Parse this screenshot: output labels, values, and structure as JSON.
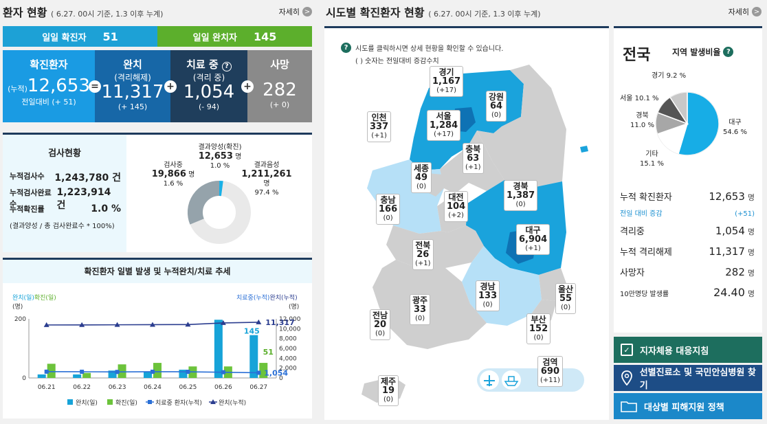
{
  "patient": {
    "title": "환자 현황",
    "subtitle": "( 6.27. 00시 기준, 1.3 이후 누계)",
    "more": "자세히",
    "daily_confirmed_label": "일일 확진자",
    "daily_confirmed": "51",
    "daily_released_label": "일일 완치자",
    "daily_released": "145",
    "confirmed": {
      "label": "확진환자",
      "prefix": "(누적)",
      "value": "12,653",
      "delta": "전일대비 (+ 51)"
    },
    "released": {
      "label": "완치",
      "sub": "(격리해제)",
      "value": "11,317",
      "delta": "(+ 145)"
    },
    "treating": {
      "label": "치료 중",
      "sub": "(격리 중)",
      "value": "1,054",
      "delta": "(- 94)"
    },
    "deaths": {
      "label": "사망",
      "value": "282",
      "delta": "(+ 0)"
    },
    "op_eq": "=",
    "op_plus": "+"
  },
  "tests": {
    "title": "검사현황",
    "rows": [
      {
        "label": "누적검사수",
        "value": "1,243,780 건"
      },
      {
        "label": "누적검사완료수",
        "value": "1,223,914 건"
      },
      {
        "label": "누적확진률",
        "value": "1.0 %"
      }
    ],
    "note": "(결과양성 / 총 검사완료수 * 100%)",
    "donut": {
      "positive_label": "결과양성(확진)",
      "positive_value": "12,653",
      "positive_unit": "명",
      "positive_pct": "1.0 %",
      "testing_label": "검사중",
      "testing_value": "19,866",
      "testing_unit": "명",
      "testing_pct": "1.6 %",
      "negative_label": "결과음성",
      "negative_value": "1,211,261",
      "negative_unit": "명",
      "negative_pct": "97.4 %"
    }
  },
  "trend": {
    "title": "확진환자 일별 발생 및 누적완치/치료 추세",
    "left_axis_title1": "완치(일)",
    "left_axis_title2": "확진(일)",
    "left_unit": "(명)",
    "right_axis_title1": "치료중(누적)",
    "right_axis_title2": "완치(누적)",
    "right_unit": "(명)",
    "left_ticks": [
      "200",
      "0"
    ],
    "right_ticks": [
      "12,000",
      "10,000",
      "8,000",
      "6,000",
      "4,000",
      "2,000",
      "0"
    ],
    "legend": [
      "완치(일)",
      "확진(일)",
      "치료중 환자(누적)",
      "완치(누적)"
    ],
    "ann_released_cum": "11,317",
    "ann_released_daily": "145",
    "ann_confirmed_daily": "51",
    "ann_treating": "1,054"
  },
  "chart_data": {
    "type": "bar",
    "categories": [
      "06.21",
      "06.22",
      "06.23",
      "06.24",
      "06.25",
      "06.26",
      "06.27"
    ],
    "series": [
      {
        "name": "완치(일)",
        "axis": "left",
        "values": [
          12,
          12,
          25,
          22,
          28,
          197,
          145
        ]
      },
      {
        "name": "확진(일)",
        "axis": "left",
        "values": [
          48,
          17,
          46,
          51,
          39,
          39,
          51
        ]
      },
      {
        "name": "치료중 환자(누적)",
        "axis": "right",
        "type": "line",
        "values": [
          1277,
          1262,
          1225,
          1265,
          1254,
          1166,
          1054
        ]
      },
      {
        "name": "완치(누적)",
        "axis": "right",
        "type": "line",
        "values": [
          10760,
          10772,
          10797,
          10819,
          10847,
          11172,
          11317
        ]
      }
    ],
    "ylim_left": [
      0,
      200
    ],
    "ylim_right": [
      0,
      12000
    ],
    "colors": {
      "released_daily": "#17a3d8",
      "confirmed_daily": "#6cc33b",
      "treating_cum": "#2a6fd6",
      "released_cum": "#2b3d8f"
    }
  },
  "regional": {
    "title": "시도별 확진환자 현황",
    "subtitle": "( 6.27. 00시 기준, 1.3 이후 누계)",
    "more": "자세히",
    "hint1": "시도를 클릭하시면 상세 현황을 확인할 수 있습니다.",
    "hint2": "( ) 숫자는 전일대비 증감수치",
    "regions": [
      {
        "name": "경기",
        "value": "1,167",
        "delta": "(+17)"
      },
      {
        "name": "강원",
        "value": "64",
        "delta": "(0)"
      },
      {
        "name": "인천",
        "value": "337",
        "delta": "(+1)"
      },
      {
        "name": "서울",
        "value": "1,284",
        "delta": "(+17)"
      },
      {
        "name": "충북",
        "value": "63",
        "delta": "(+1)"
      },
      {
        "name": "세종",
        "value": "49",
        "delta": "(0)"
      },
      {
        "name": "경북",
        "value": "1,387",
        "delta": "(0)"
      },
      {
        "name": "충남",
        "value": "166",
        "delta": "(0)"
      },
      {
        "name": "대전",
        "value": "104",
        "delta": "(+2)"
      },
      {
        "name": "대구",
        "value": "6,904",
        "delta": "(+1)"
      },
      {
        "name": "전북",
        "value": "26",
        "delta": "(+1)"
      },
      {
        "name": "경남",
        "value": "133",
        "delta": "(0)"
      },
      {
        "name": "광주",
        "value": "33",
        "delta": "(0)"
      },
      {
        "name": "울산",
        "value": "55",
        "delta": "(0)"
      },
      {
        "name": "전남",
        "value": "20",
        "delta": "(0)"
      },
      {
        "name": "부산",
        "value": "152",
        "delta": "(0)"
      },
      {
        "name": "검역",
        "value": "690",
        "delta": "(+11)"
      },
      {
        "name": "제주",
        "value": "19",
        "delta": "(0)"
      }
    ]
  },
  "national": {
    "title": "전국",
    "ratio_label": "지역 발생비율",
    "pie": [
      {
        "name": "대구",
        "pct": "54.6 %"
      },
      {
        "name": "기타",
        "pct": "15.1 %"
      },
      {
        "name": "경북",
        "pct": "11.0 %"
      },
      {
        "name": "서울",
        "pct": "10.1 %"
      },
      {
        "name": "경기",
        "pct": "9.2 %"
      }
    ],
    "pie_values": [
      54.6,
      15.1,
      11.0,
      10.1,
      9.2
    ],
    "pie_colors": [
      "#17ade6",
      "#ffffff",
      "#a7a7a7",
      "#555555",
      "#c8c8c8"
    ],
    "stats": {
      "confirmed_label": "누적 확진환자",
      "confirmed": "12,653",
      "delta_label": "전일 대비 증감",
      "delta": "(+51)",
      "isolating_label": "격리중",
      "isolating": "1,054",
      "released_label": "누적 격리해제",
      "released": "11,317",
      "deaths_label": "사망자",
      "deaths": "282",
      "rate_label": "10만명당 발생률",
      "rate": "24.40",
      "unit": "명"
    },
    "buttons": [
      "지자체용 대응지침",
      "선별진료소 및 국민안심병원 찾기",
      "대상별 피해지원 정책"
    ]
  }
}
